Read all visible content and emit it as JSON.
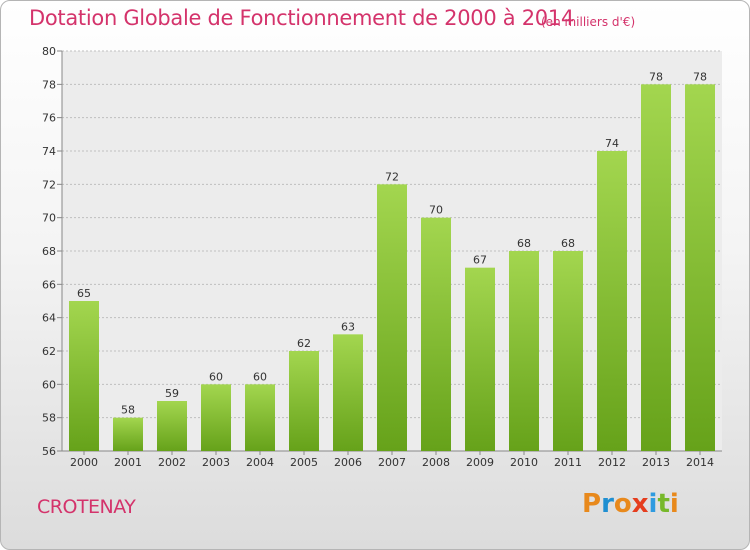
{
  "title": "Dotation Globale de Fonctionnement de 2000 à 2014",
  "subtitle": "(en milliers d'€)",
  "place": "CROTENAY",
  "logo": {
    "letters": [
      "P",
      "r",
      "o",
      "x",
      "i",
      "t",
      "i"
    ],
    "colors": [
      "#e8891c",
      "#1f8fd1",
      "#e8891c",
      "#e53d1e",
      "#2e9be0",
      "#77b82a",
      "#e8891c"
    ]
  },
  "colors": {
    "title": "#d4336b",
    "bar_light": "#a3d64f",
    "bar_dark": "#66a21a",
    "axis_text": "#333333",
    "grid": "#bfbfbf"
  },
  "chart_data": {
    "type": "bar",
    "title": "Dotation Globale de Fonctionnement de 2000 à 2014",
    "subtitle": "(en milliers d'€)",
    "categories": [
      "2000",
      "2001",
      "2002",
      "2003",
      "2004",
      "2005",
      "2006",
      "2007",
      "2008",
      "2009",
      "2010",
      "2011",
      "2012",
      "2013",
      "2014"
    ],
    "values": [
      65,
      58,
      59,
      60,
      60,
      62,
      63,
      72,
      70,
      67,
      68,
      68,
      74,
      78,
      78
    ],
    "ylim": [
      56,
      80
    ],
    "yticks": [
      56,
      58,
      60,
      62,
      64,
      66,
      68,
      70,
      72,
      74,
      76,
      78,
      80
    ],
    "grid": true,
    "xlabel": "",
    "ylabel": ""
  }
}
